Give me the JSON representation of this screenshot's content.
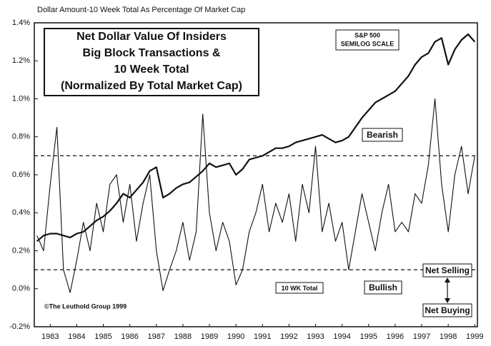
{
  "chart_data": {
    "type": "line",
    "top_label": "Dollar Amount-10 Week Total As Percentage Of Market Cap",
    "title_lines": [
      "Net Dollar Value Of Insiders",
      "Big Block Transactions &",
      "10 Week Total",
      "(Normalized By Total Market Cap)"
    ],
    "scale_note": "SEMILOG SCALE",
    "copyright": "©The Leuthold Group 1999",
    "annotations": [
      "Bearish",
      "Bullish",
      "Net Selling",
      "Net Buying"
    ],
    "reference_lines": [
      0.7,
      0.1
    ],
    "xlim": [
      1982.9,
      1999.6
    ],
    "xticks": [
      {
        "value": 1983.5,
        "label": "1983"
      },
      {
        "value": 1984.5,
        "label": "1984"
      },
      {
        "value": 1985.5,
        "label": "1985"
      },
      {
        "value": 1986.5,
        "label": "1986"
      },
      {
        "value": 1987.5,
        "label": "1987"
      },
      {
        "value": 1988.5,
        "label": "1988"
      },
      {
        "value": 1989.5,
        "label": "1989"
      },
      {
        "value": 1990.5,
        "label": "1990"
      },
      {
        "value": 1991.5,
        "label": "1991"
      },
      {
        "value": 1992.5,
        "label": "1992"
      },
      {
        "value": 1993.5,
        "label": "1993"
      },
      {
        "value": 1994.5,
        "label": "1994"
      },
      {
        "value": 1995.5,
        "label": "1995"
      },
      {
        "value": 1996.5,
        "label": "1996"
      },
      {
        "value": 1997.5,
        "label": "1997"
      },
      {
        "value": 1998.5,
        "label": "1998"
      },
      {
        "value": 1999.5,
        "label": "1999"
      }
    ],
    "ylim": [
      -0.2,
      1.4
    ],
    "yticks": [
      {
        "value": -0.2,
        "label": "-0.2%"
      },
      {
        "value": 0,
        "label": "0.0%"
      },
      {
        "value": 0.2,
        "label": "0.2%"
      },
      {
        "value": 0.4,
        "label": "0.4%"
      },
      {
        "value": 0.6,
        "label": "0.6%"
      },
      {
        "value": 0.8,
        "label": "0.8%"
      },
      {
        "value": 1.0,
        "label": "1.0%"
      },
      {
        "value": 1.2,
        "label": "1.2%"
      },
      {
        "value": 1.4,
        "label": "1.4%"
      }
    ],
    "grid": false,
    "x": [
      1983,
      1983.25,
      1983.5,
      1983.75,
      1984,
      1984.25,
      1984.5,
      1984.75,
      1985,
      1985.25,
      1985.5,
      1985.75,
      1986,
      1986.25,
      1986.5,
      1986.75,
      1987,
      1987.25,
      1987.5,
      1987.75,
      1988,
      1988.25,
      1988.5,
      1988.75,
      1989,
      1989.25,
      1989.5,
      1989.75,
      1990,
      1990.25,
      1990.5,
      1990.75,
      1991,
      1991.25,
      1991.5,
      1991.75,
      1992,
      1992.25,
      1992.5,
      1992.75,
      1993,
      1993.25,
      1993.5,
      1993.75,
      1994,
      1994.25,
      1994.5,
      1994.75,
      1995,
      1995.25,
      1995.5,
      1995.75,
      1996,
      1996.25,
      1996.5,
      1996.75,
      1997,
      1997.25,
      1997.5,
      1997.75,
      1998,
      1998.25,
      1998.5,
      1998.75,
      1999,
      1999.25,
      1999.5
    ],
    "series": [
      {
        "name": "10 WK Total",
        "color": "#111111",
        "width": 1.1,
        "values": [
          0.28,
          0.2,
          0.55,
          0.85,
          0.1,
          -0.02,
          0.15,
          0.35,
          0.2,
          0.45,
          0.3,
          0.55,
          0.6,
          0.35,
          0.55,
          0.25,
          0.45,
          0.6,
          0.2,
          -0.01,
          0.1,
          0.2,
          0.35,
          0.15,
          0.3,
          0.92,
          0.4,
          0.2,
          0.35,
          0.25,
          0.02,
          0.1,
          0.3,
          0.4,
          0.55,
          0.3,
          0.45,
          0.35,
          0.5,
          0.25,
          0.55,
          0.4,
          0.75,
          0.3,
          0.45,
          0.25,
          0.35,
          0.1,
          0.3,
          0.5,
          0.35,
          0.2,
          0.4,
          0.55,
          0.3,
          0.35,
          0.3,
          0.5,
          0.45,
          0.65,
          1.0,
          0.55,
          0.3,
          0.6,
          0.75,
          0.5,
          0.7
        ]
      },
      {
        "name": "S&P 500",
        "color": "#111111",
        "width": 2.2,
        "values": [
          0.25,
          0.28,
          0.29,
          0.29,
          0.28,
          0.27,
          0.29,
          0.3,
          0.33,
          0.36,
          0.38,
          0.41,
          0.45,
          0.5,
          0.48,
          0.52,
          0.56,
          0.62,
          0.64,
          0.48,
          0.5,
          0.53,
          0.55,
          0.56,
          0.59,
          0.62,
          0.66,
          0.64,
          0.65,
          0.66,
          0.6,
          0.63,
          0.68,
          0.69,
          0.7,
          0.72,
          0.74,
          0.74,
          0.75,
          0.77,
          0.78,
          0.79,
          0.8,
          0.81,
          0.79,
          0.77,
          0.78,
          0.8,
          0.85,
          0.9,
          0.94,
          0.98,
          1.0,
          1.02,
          1.04,
          1.08,
          1.12,
          1.18,
          1.22,
          1.24,
          1.3,
          1.32,
          1.18,
          1.26,
          1.31,
          1.34,
          1.3
        ]
      }
    ]
  }
}
